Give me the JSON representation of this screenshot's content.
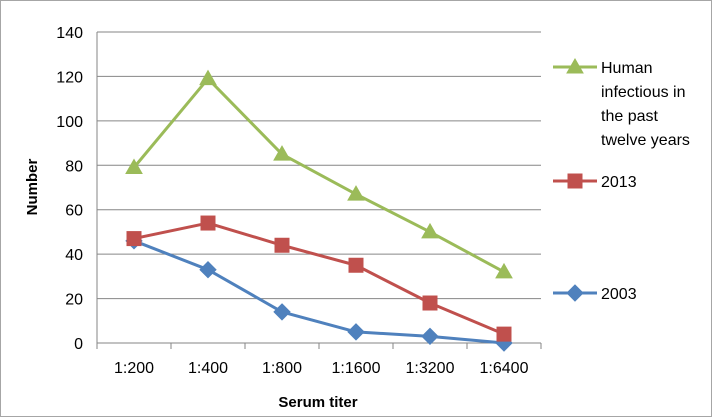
{
  "chart_data": {
    "type": "line",
    "title": "",
    "xlabel": "Serum titer",
    "ylabel": "Number",
    "ylim": [
      0,
      140
    ],
    "ytick_step": 20,
    "grid": "horizontal",
    "legend_position": "right",
    "categories": [
      "1:200",
      "1:400",
      "1:800",
      "1:1600",
      "1:3200",
      "1:6400"
    ],
    "series": [
      {
        "name": "Human infectious in the past twelve years",
        "legend_lines": [
          "Human",
          "infectious in",
          "the past",
          "twelve years"
        ],
        "color": "#9bbb59",
        "marker": "triangle",
        "values": [
          79,
          119,
          85,
          67,
          50,
          32
        ]
      },
      {
        "name": "2013",
        "legend_lines": [
          "2013"
        ],
        "color": "#c0504d",
        "marker": "square",
        "values": [
          47,
          54,
          44,
          35,
          18,
          4
        ]
      },
      {
        "name": "2003",
        "legend_lines": [
          "2003"
        ],
        "color": "#4f81bd",
        "marker": "diamond",
        "values": [
          46,
          33,
          14,
          5,
          3,
          0
        ]
      }
    ]
  }
}
